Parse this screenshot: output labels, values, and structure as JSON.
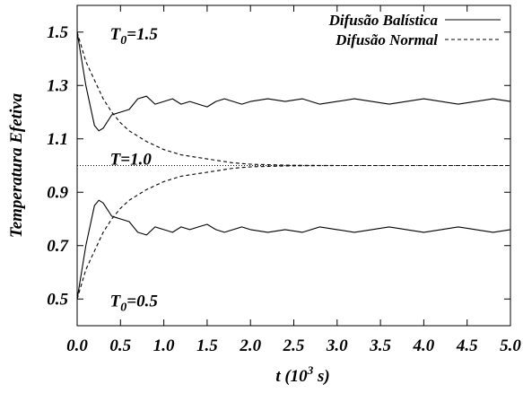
{
  "chart_data": {
    "type": "line",
    "xlabel": "t (10³ s)",
    "xlabel_parts": {
      "main": "t (10",
      "sup": "3",
      "tail": " s)"
    },
    "ylabel": "Temperatura Efetiva",
    "xlim": [
      0.0,
      5.0
    ],
    "ylim": [
      0.4,
      1.6
    ],
    "x_ticks": [
      "0.0",
      "0.5",
      "1.0",
      "1.5",
      "2.0",
      "2.5",
      "3.0",
      "3.5",
      "4.0",
      "4.5",
      "5.0"
    ],
    "y_ticks": [
      "0.5",
      "0.7",
      "0.9",
      "1.1",
      "1.3",
      "1.5"
    ],
    "x_tick_values": [
      0.0,
      0.5,
      1.0,
      1.5,
      2.0,
      2.5,
      3.0,
      3.5,
      4.0,
      4.5,
      5.0
    ],
    "y_tick_values": [
      0.5,
      0.7,
      0.9,
      1.1,
      1.3,
      1.5
    ],
    "legend_position": "top-right",
    "grid": false,
    "annotations": [
      {
        "base": "T",
        "sub": "0",
        "rest": "=1.5",
        "x": 0.1,
        "y": 1.5
      },
      {
        "base": "T",
        "sub": "",
        "rest": "=1.0",
        "x": 0.1,
        "y": 1.03
      },
      {
        "base": "T",
        "sub": "0",
        "rest": "=0.5",
        "x": 0.1,
        "y": 0.5
      }
    ],
    "series": [
      {
        "name": "Difusão Balística",
        "style": "solid",
        "x": [
          0.0,
          0.1,
          0.2,
          0.25,
          0.3,
          0.4,
          0.5,
          0.6,
          0.7,
          0.8,
          0.9,
          1.0,
          1.1,
          1.2,
          1.3,
          1.4,
          1.5,
          1.6,
          1.7,
          1.8,
          1.9,
          2.0,
          2.2,
          2.4,
          2.6,
          2.8,
          3.0,
          3.2,
          3.4,
          3.6,
          3.8,
          4.0,
          4.2,
          4.4,
          4.6,
          4.8,
          5.0
        ],
        "values": [
          1.5,
          1.3,
          1.15,
          1.13,
          1.14,
          1.19,
          1.2,
          1.21,
          1.25,
          1.26,
          1.23,
          1.24,
          1.25,
          1.23,
          1.24,
          1.23,
          1.22,
          1.24,
          1.25,
          1.24,
          1.23,
          1.24,
          1.25,
          1.24,
          1.25,
          1.23,
          1.24,
          1.25,
          1.24,
          1.23,
          1.24,
          1.25,
          1.24,
          1.23,
          1.24,
          1.25,
          1.24
        ]
      },
      {
        "name": "Difusão Normal",
        "style": "dashed",
        "x": [
          0.0,
          0.1,
          0.2,
          0.3,
          0.4,
          0.5,
          0.6,
          0.8,
          1.0,
          1.2,
          1.4,
          1.6,
          1.8,
          2.0,
          2.2,
          2.5,
          3.0,
          3.5,
          4.0,
          4.5,
          5.0
        ],
        "values": [
          1.5,
          1.39,
          1.32,
          1.25,
          1.2,
          1.16,
          1.13,
          1.09,
          1.06,
          1.04,
          1.03,
          1.02,
          1.01,
          1.005,
          1.003,
          1.001,
          1.0,
          1.0,
          1.0,
          1.0,
          1.0
        ]
      },
      {
        "name": "",
        "style": "solid",
        "x": [
          0.0,
          0.1,
          0.2,
          0.25,
          0.3,
          0.4,
          0.5,
          0.6,
          0.7,
          0.8,
          0.9,
          1.0,
          1.1,
          1.2,
          1.3,
          1.4,
          1.5,
          1.6,
          1.7,
          1.8,
          1.9,
          2.0,
          2.2,
          2.4,
          2.6,
          2.8,
          3.0,
          3.2,
          3.4,
          3.6,
          3.8,
          4.0,
          4.2,
          4.4,
          4.6,
          4.8,
          5.0
        ],
        "values": [
          0.5,
          0.7,
          0.85,
          0.87,
          0.86,
          0.81,
          0.8,
          0.79,
          0.75,
          0.74,
          0.77,
          0.76,
          0.75,
          0.77,
          0.76,
          0.77,
          0.78,
          0.76,
          0.75,
          0.76,
          0.77,
          0.76,
          0.75,
          0.76,
          0.75,
          0.77,
          0.76,
          0.75,
          0.76,
          0.77,
          0.76,
          0.75,
          0.76,
          0.77,
          0.76,
          0.75,
          0.76
        ]
      },
      {
        "name": "",
        "style": "dashed",
        "x": [
          0.0,
          0.1,
          0.2,
          0.3,
          0.4,
          0.5,
          0.6,
          0.8,
          1.0,
          1.2,
          1.4,
          1.6,
          1.8,
          2.0,
          2.2,
          2.5,
          3.0,
          3.5,
          4.0,
          4.5,
          5.0
        ],
        "values": [
          0.5,
          0.61,
          0.68,
          0.75,
          0.8,
          0.84,
          0.87,
          0.91,
          0.94,
          0.96,
          0.97,
          0.98,
          0.99,
          0.995,
          0.997,
          0.999,
          1.0,
          1.0,
          1.0,
          1.0,
          1.0
        ]
      },
      {
        "name": "",
        "style": "dotted",
        "x": [
          0.0,
          5.0
        ],
        "values": [
          1.0,
          1.0
        ]
      }
    ]
  }
}
